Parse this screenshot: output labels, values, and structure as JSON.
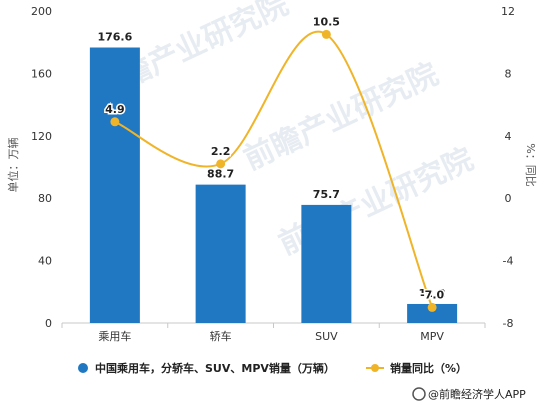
{
  "chart_data": {
    "type": "bar",
    "categories": [
      "乘用车",
      "轿车",
      "SUV",
      "MPV"
    ],
    "series": [
      {
        "name": "中国乘用车，分轿车、SUV、MPV销量（万辆）",
        "type": "bar",
        "axis": "left",
        "color": "#1f78c1",
        "values": [
          176.6,
          88.7,
          75.7,
          12.2
        ]
      },
      {
        "name": "销量同比（%）",
        "type": "line",
        "axis": "right",
        "color": "#f0b429",
        "values": [
          4.9,
          2.2,
          10.5,
          -7.0
        ]
      }
    ],
    "bar_labels": [
      "176.6",
      "88.7",
      "75.7",
      "12.2"
    ],
    "line_labels": [
      "4.9",
      "2.2",
      "10.5",
      "-7.0"
    ],
    "ylabel": "单位：万辆",
    "y2label": "%：同比",
    "ylim": [
      0,
      200
    ],
    "yticks": [
      0,
      40,
      80,
      120,
      160,
      200
    ],
    "y2lim": [
      -8,
      12
    ],
    "y2ticks": [
      -8,
      -4,
      0,
      4,
      8,
      12
    ],
    "grid": false,
    "legend_position": "bottom"
  },
  "watermark": "前瞻产业研究院",
  "source": "@前瞻经济学人APP"
}
